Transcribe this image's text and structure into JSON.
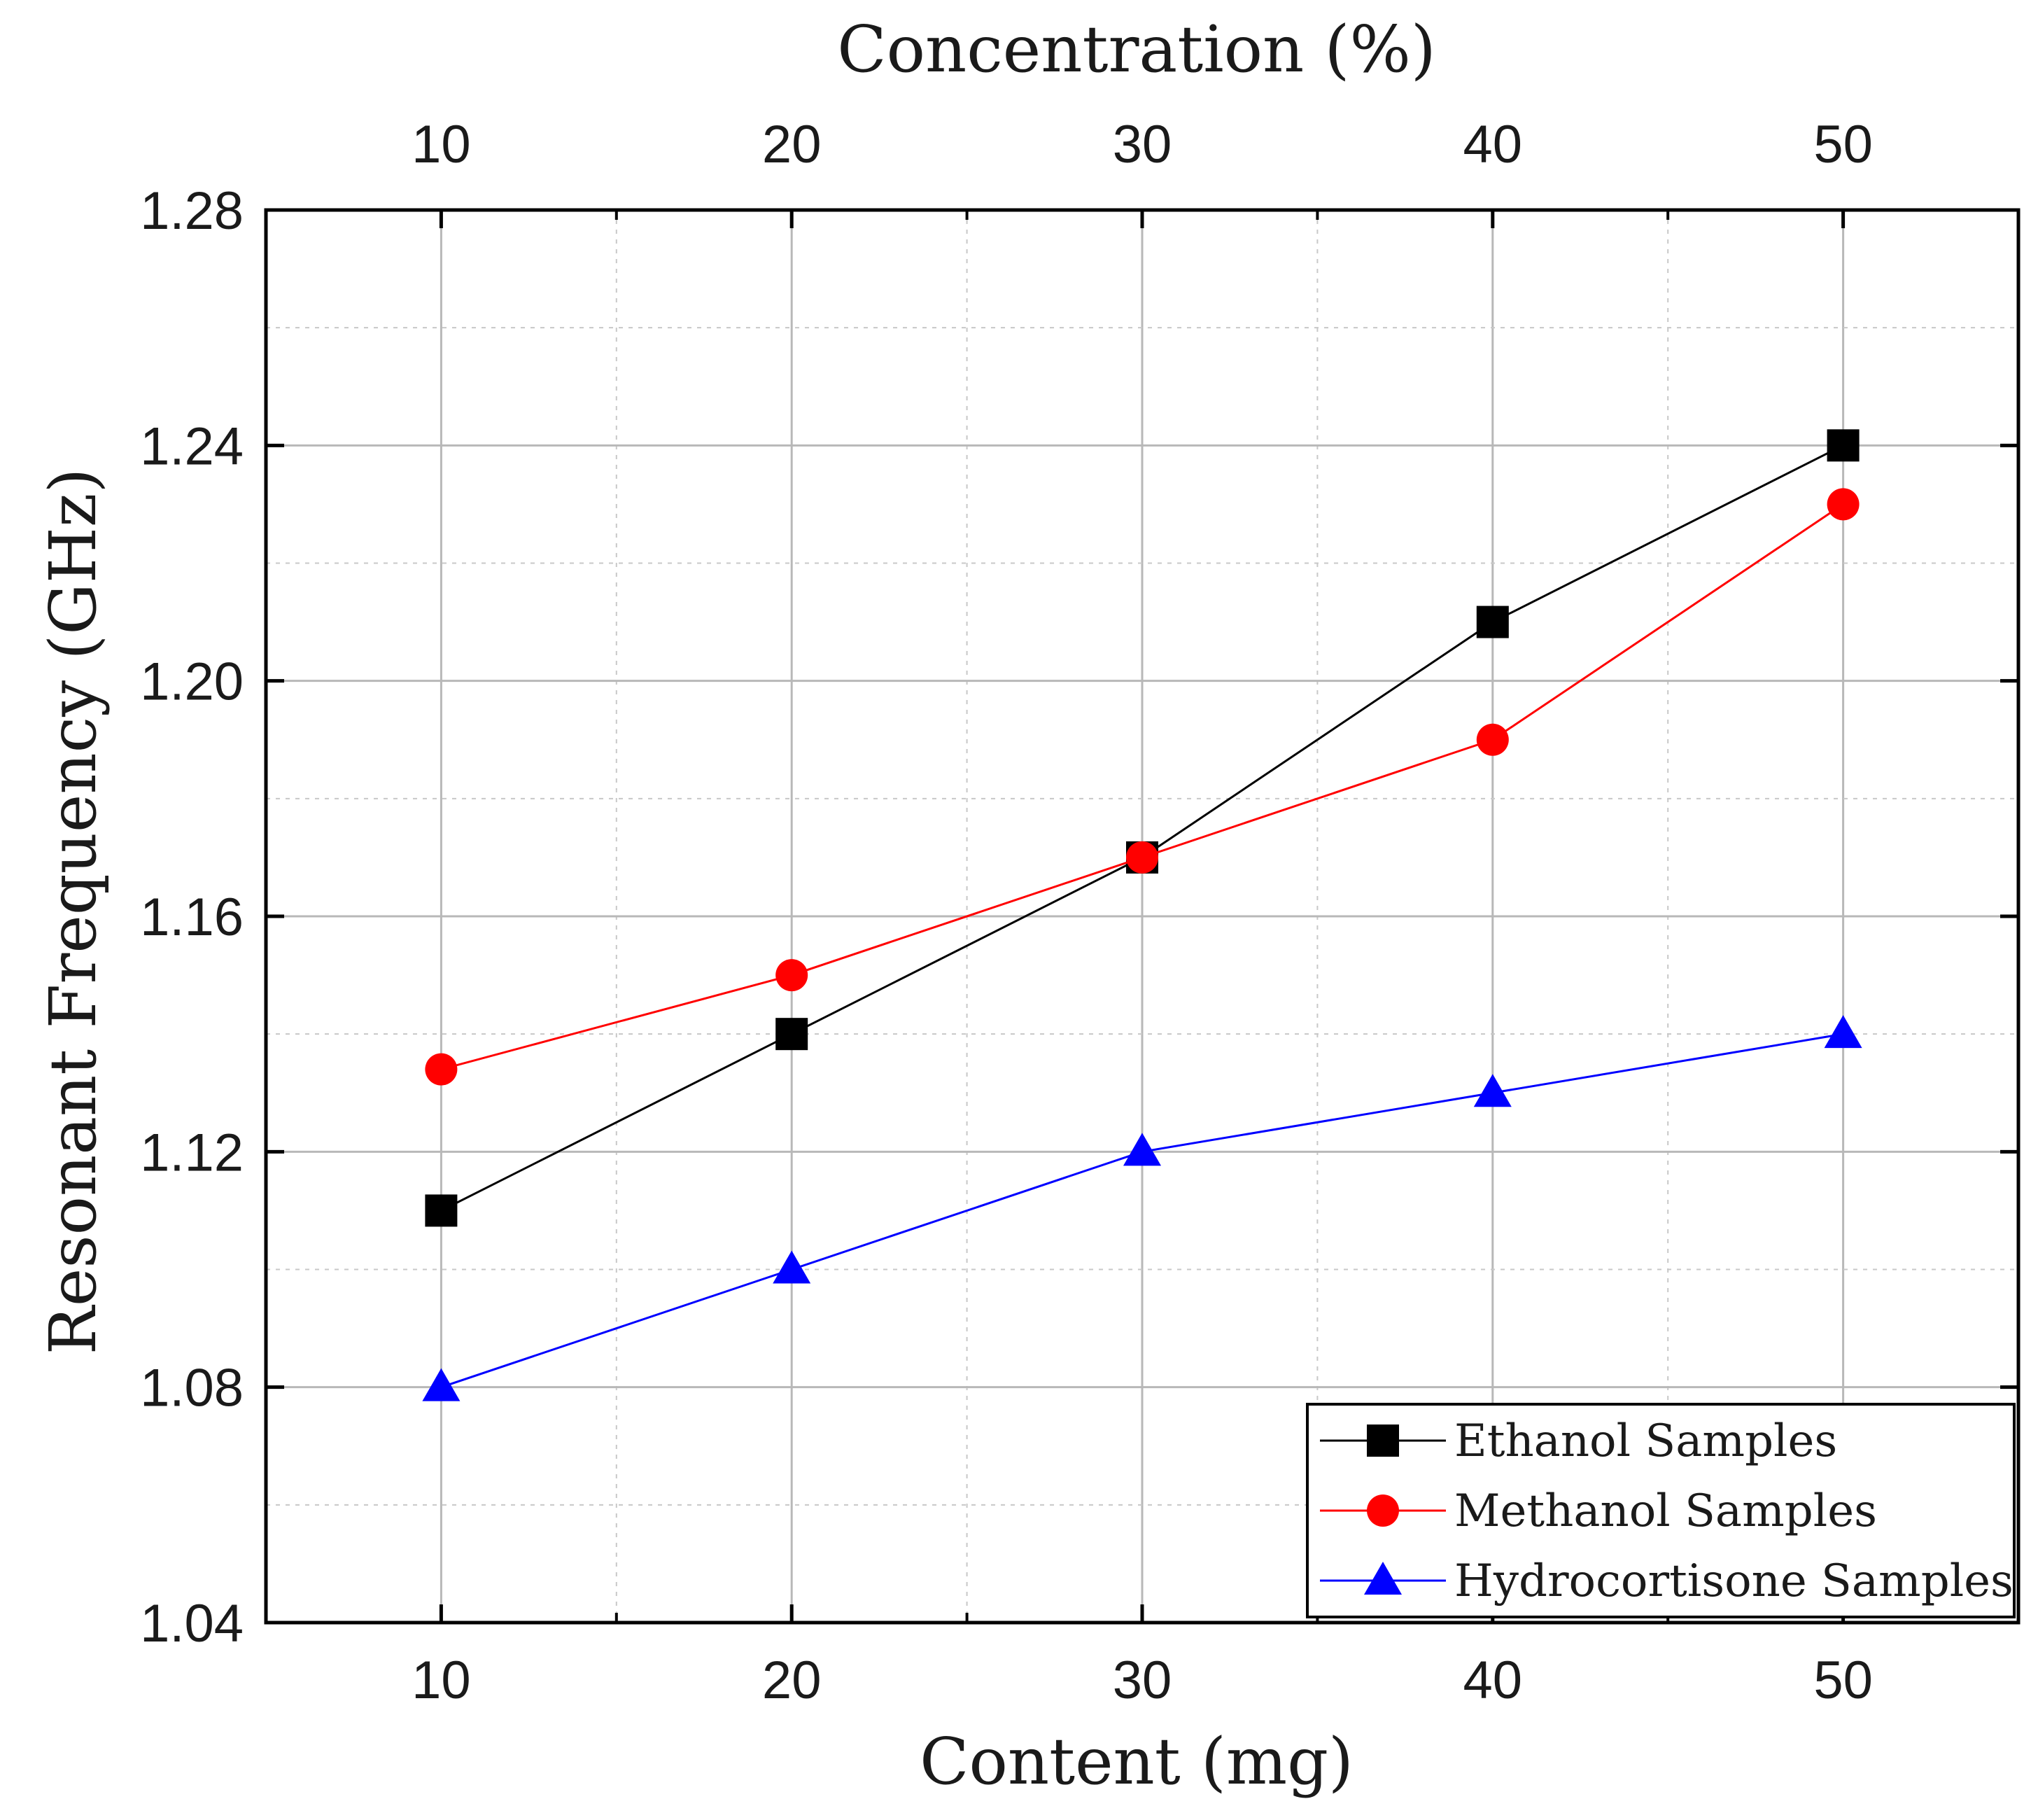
{
  "chart_data": {
    "type": "line",
    "x": [
      10,
      20,
      30,
      40,
      50
    ],
    "xlabel": "Content (mg)",
    "x2label": "Concentration (%)",
    "ylabel": "Resonant Frequency (GHz)",
    "xlim": [
      5,
      55
    ],
    "ylim": [
      1.04,
      1.28
    ],
    "xticks": [
      "10",
      "20",
      "30",
      "40",
      "50"
    ],
    "x2ticks": [
      "10",
      "20",
      "30",
      "40",
      "50"
    ],
    "yticks": [
      {
        "value": 1.04,
        "label": "1.04"
      },
      {
        "value": 1.08,
        "label": "1.08"
      },
      {
        "value": 1.12,
        "label": "1.12"
      },
      {
        "value": 1.16,
        "label": "1.16"
      },
      {
        "value": 1.2,
        "label": "1.20"
      },
      {
        "value": 1.24,
        "label": "1.24"
      },
      {
        "value": 1.28,
        "label": "1.28"
      }
    ],
    "grid": true,
    "legend_position": "bottom-right",
    "series": [
      {
        "name": "Ethanol Samples",
        "color": "#000000",
        "marker": "square",
        "values": [
          1.11,
          1.14,
          1.17,
          1.21,
          1.24
        ]
      },
      {
        "name": "Methanol Samples",
        "color": "#ff0000",
        "marker": "circle",
        "values": [
          1.134,
          1.15,
          1.17,
          1.19,
          1.23
        ]
      },
      {
        "name": "Hydrocortisone Samples",
        "color": "#0000ff",
        "marker": "triangle",
        "values": [
          1.08,
          1.1,
          1.12,
          1.13,
          1.14
        ]
      }
    ]
  }
}
